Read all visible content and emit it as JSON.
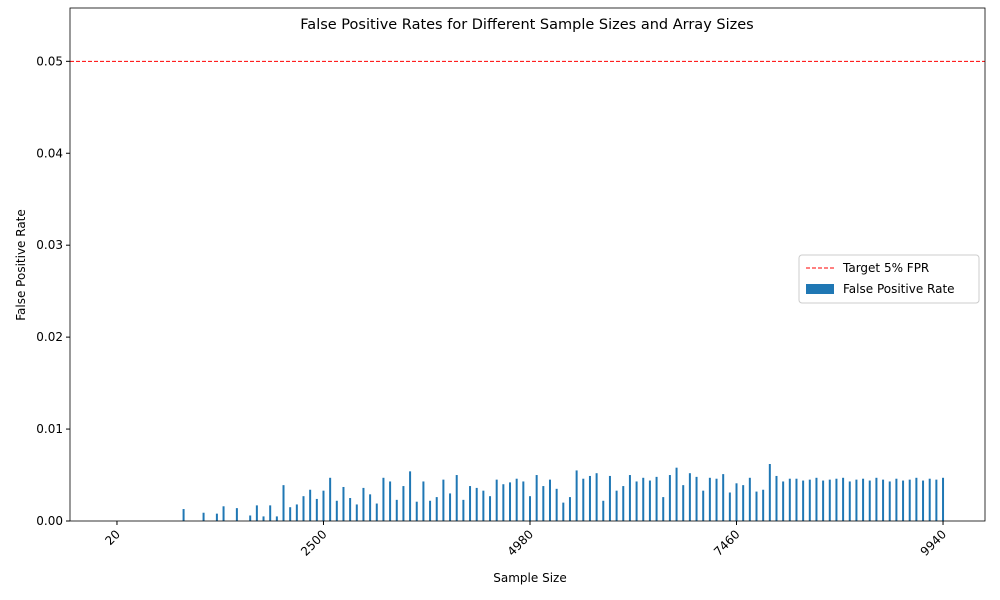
{
  "chart_data": {
    "type": "bar",
    "title": "False Positive Rates for Different Sample Sizes and Array Sizes",
    "x_label": "Sample Size",
    "y_label": "False Positive Rate",
    "x": [
      20,
      100,
      180,
      260,
      340,
      420,
      500,
      580,
      660,
      740,
      820,
      900,
      980,
      1060,
      1140,
      1220,
      1300,
      1380,
      1460,
      1540,
      1620,
      1700,
      1780,
      1860,
      1940,
      2020,
      2100,
      2180,
      2260,
      2340,
      2420,
      2500,
      2580,
      2660,
      2740,
      2820,
      2900,
      2980,
      3060,
      3140,
      3220,
      3300,
      3380,
      3460,
      3540,
      3620,
      3700,
      3780,
      3860,
      3940,
      4020,
      4100,
      4180,
      4260,
      4340,
      4420,
      4500,
      4580,
      4660,
      4740,
      4820,
      4900,
      4980,
      5060,
      5140,
      5220,
      5300,
      5380,
      5460,
      5540,
      5620,
      5700,
      5780,
      5860,
      5940,
      6020,
      6100,
      6180,
      6260,
      6340,
      6420,
      6500,
      6580,
      6660,
      6740,
      6820,
      6900,
      6980,
      7060,
      7140,
      7220,
      7300,
      7380,
      7460,
      7540,
      7620,
      7700,
      7780,
      7860,
      7940,
      8020,
      8100,
      8180,
      8260,
      8340,
      8420,
      8500,
      8580,
      8660,
      8740,
      8820,
      8900,
      8980,
      9060,
      9140,
      9220,
      9300,
      9380,
      9460,
      9540,
      9620,
      9700,
      9780,
      9860,
      9940
    ],
    "series": [
      {
        "name": "False Positive Rate",
        "color": "#1f77b4",
        "values": [
          0,
          0,
          0,
          0,
          0,
          0,
          0,
          0,
          0,
          0,
          0.0013,
          0,
          0,
          0.0009,
          0,
          0.0008,
          0.0016,
          0,
          0.0014,
          0,
          0.0006,
          0.0017,
          0.0005,
          0.0017,
          0.0005,
          0.0039,
          0.0015,
          0.0018,
          0.0027,
          0.0034,
          0.0024,
          0.0033,
          0.0047,
          0.0022,
          0.0037,
          0.0025,
          0.0018,
          0.0036,
          0.0029,
          0.0019,
          0.0047,
          0.0043,
          0.0023,
          0.0038,
          0.0054,
          0.0021,
          0.0043,
          0.0022,
          0.0026,
          0.0045,
          0.003,
          0.005,
          0.0023,
          0.0038,
          0.0036,
          0.0033,
          0.0027,
          0.0045,
          0.004,
          0.0042,
          0.0046,
          0.0043,
          0.0027,
          0.005,
          0.0038,
          0.0045,
          0.0035,
          0.002,
          0.0026,
          0.0055,
          0.0046,
          0.0049,
          0.0052,
          0.0022,
          0.0049,
          0.0033,
          0.0038,
          0.005,
          0.0043,
          0.0047,
          0.0044,
          0.0048,
          0.0026,
          0.005,
          0.0058,
          0.0039,
          0.0052,
          0.0048,
          0.0033,
          0.0047,
          0.0046,
          0.0051,
          0.0031,
          0.0041,
          0.0039,
          0.0047,
          0.0032,
          0.0034,
          0.0062,
          0.0049,
          0.0043,
          0.0046,
          0.0046,
          0.0044,
          0.0045,
          0.0047,
          0.0044,
          0.0045,
          0.0046,
          0.0047,
          0.0043,
          0.0045,
          0.0046,
          0.0044,
          0.0047,
          0.0045,
          0.0043,
          0.0046,
          0.0044,
          0.0045,
          0.0047,
          0.0044,
          0.0046,
          0.0045,
          0.0047
        ]
      }
    ],
    "reference_line": {
      "name": "Target 5% FPR",
      "value": 0.05,
      "color": "#ff0000"
    },
    "xlim": [
      -544,
      10444
    ],
    "xticks": [
      20,
      2500,
      4980,
      7460,
      9940
    ],
    "ylim": [
      0,
      0.0558
    ],
    "yticks": [
      {
        "value": 0,
        "label": "0.00"
      },
      {
        "value": 0.01,
        "label": "0.01"
      },
      {
        "value": 0.02,
        "label": "0.02"
      },
      {
        "value": 0.03,
        "label": "0.03"
      },
      {
        "value": 0.04,
        "label": "0.04"
      },
      {
        "value": 0.05,
        "label": "0.05"
      }
    ],
    "legend": "center right"
  }
}
